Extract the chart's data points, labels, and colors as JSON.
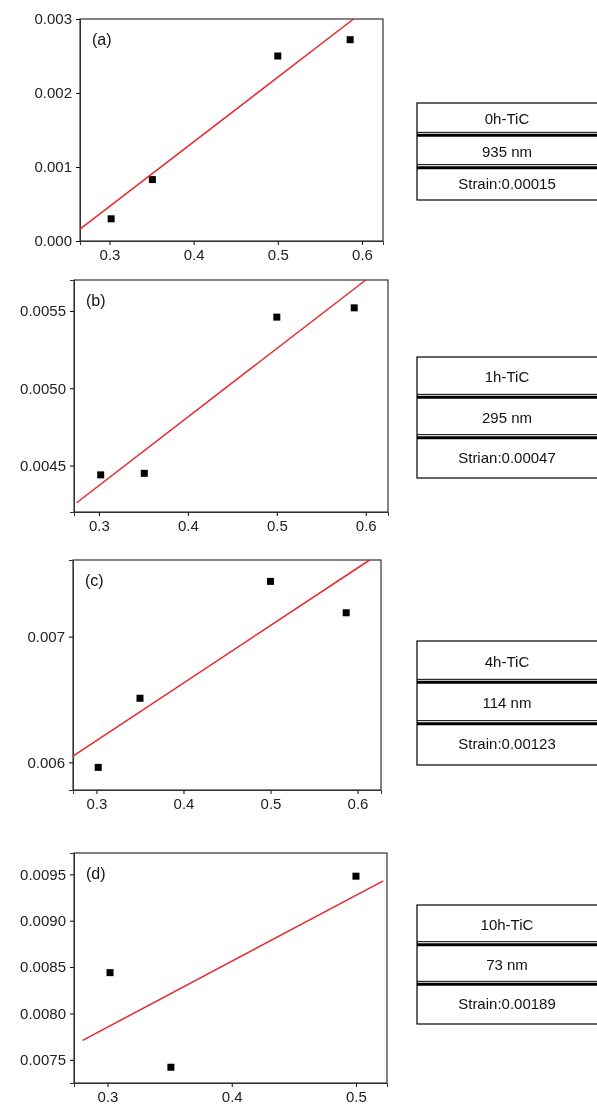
{
  "chart_data": [
    {
      "type": "scatter",
      "annotations": [
        "(a)"
      ],
      "xlim": [
        0.265,
        0.625
      ],
      "ylim": [
        0,
        0.003
      ],
      "xticks": [
        0.3,
        0.4,
        0.5,
        0.6
      ],
      "yticks": [
        {
          "value": 0,
          "label": "0.000"
        },
        {
          "value": 0.001,
          "label": "0.001"
        },
        {
          "value": 0.002,
          "label": "0.002"
        },
        {
          "value": 0.003,
          "label": "0.003"
        }
      ],
      "grid": false,
      "series": [
        {
          "type": "scatter",
          "marker": "square",
          "color": "#000000",
          "x": [
            0.302,
            0.351,
            0.5,
            0.586
          ],
          "values": [
            0.0003,
            0.00083,
            0.0025,
            0.00272
          ]
        },
        {
          "type": "line",
          "marker": "none",
          "line_style": "solid",
          "color": "#e8282d",
          "x": [
            0.265,
            0.59
          ],
          "values": [
            0.00016,
            0.003
          ]
        }
      ]
    },
    {
      "type": "other",
      "annotations": [
        "0h-TiC",
        "935 nm",
        "Strain:0.00015"
      ]
    },
    {
      "type": "scatter",
      "annotations": [
        "(b)"
      ],
      "xlim": [
        0.272,
        0.625
      ],
      "ylim": [
        0.0042,
        0.0057
      ],
      "xticks": [
        0.3,
        0.4,
        0.5,
        0.6
      ],
      "yticks": [
        {
          "value": 0.0045,
          "label": "0.0045"
        },
        {
          "value": 0.005,
          "label": "0.0050"
        },
        {
          "value": 0.0055,
          "label": "0.0055"
        }
      ],
      "grid": false,
      "series": [
        {
          "type": "scatter",
          "marker": "square",
          "color": "#000000",
          "x": [
            0.302,
            0.351,
            0.5,
            0.587
          ],
          "values": [
            0.00444,
            0.00445,
            0.00546,
            0.00552
          ]
        },
        {
          "type": "line",
          "marker": "none",
          "line_style": "solid",
          "color": "#e8282d",
          "x": [
            0.275,
            0.6
          ],
          "values": [
            0.00426,
            0.0057
          ]
        }
      ]
    },
    {
      "type": "other",
      "annotations": [
        "1h-TiC",
        "295 nm",
        "Strian:0.00047"
      ]
    },
    {
      "type": "scatter",
      "annotations": [
        "(c)"
      ],
      "xlim": [
        0.273,
        0.627
      ],
      "ylim": [
        0.00578,
        0.00761
      ],
      "xticks": [
        0.3,
        0.4,
        0.5,
        0.6
      ],
      "yticks": [
        0.006,
        0.007
      ],
      "grid": false,
      "series": [
        {
          "type": "scatter",
          "marker": "square",
          "color": "#000000",
          "x": [
            0.302,
            0.35,
            0.5,
            0.587
          ],
          "values": [
            0.00596,
            0.00651,
            0.00744,
            0.00719
          ]
        },
        {
          "type": "line",
          "marker": "none",
          "line_style": "solid",
          "color": "#e8282d",
          "x": [
            0.273,
            0.614
          ],
          "values": [
            0.00605,
            0.00761
          ]
        }
      ]
    },
    {
      "type": "other",
      "annotations": [
        "4h-TiC",
        "114 nm",
        "Strain:0.00123"
      ]
    },
    {
      "type": "scatter",
      "annotations": [
        "(d)"
      ],
      "xlim": [
        0.273,
        0.525
      ],
      "ylim": [
        0.00725,
        0.00973
      ],
      "xticks": [
        0.3,
        0.4,
        0.5
      ],
      "yticks": [
        {
          "value": 0.0075,
          "label": "0.0075"
        },
        {
          "value": 0.008,
          "label": "0.0080"
        },
        {
          "value": 0.0085,
          "label": "0.0085"
        },
        {
          "value": 0.009,
          "label": "0.0090"
        },
        {
          "value": 0.0095,
          "label": "0.0095"
        }
      ],
      "grid": false,
      "series": [
        {
          "type": "scatter",
          "marker": "square",
          "color": "#000000",
          "x": [
            0.302,
            0.351,
            0.5
          ],
          "values": [
            0.00844,
            0.00742,
            0.00948
          ]
        },
        {
          "type": "line",
          "marker": "none",
          "line_style": "solid",
          "color": "#e8282d",
          "x": [
            0.28,
            0.522
          ],
          "values": [
            0.00771,
            0.00943
          ]
        }
      ]
    },
    {
      "type": "other",
      "annotations": [
        "10h-TiC",
        "73 nm",
        "Strain:0.00189"
      ]
    }
  ]
}
